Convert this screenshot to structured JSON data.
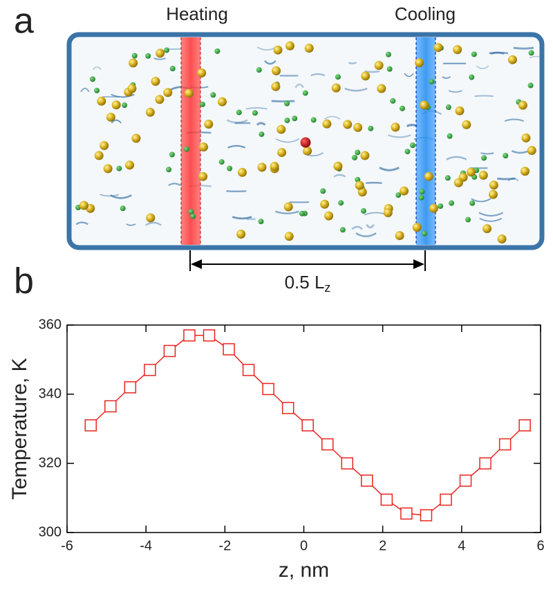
{
  "panel_a": {
    "label": "a",
    "heating": "Heating",
    "cooling": "Cooling",
    "length_label": "0.5 L",
    "length_subscript": "z"
  },
  "panel_b": {
    "label": "b"
  },
  "chart_data": {
    "type": "line",
    "xlabel": "z, nm",
    "ylabel": "Temperature, K",
    "x": [
      -5.4,
      -4.9,
      -4.4,
      -3.9,
      -3.4,
      -2.9,
      -2.4,
      -1.9,
      -1.4,
      -0.9,
      -0.4,
      0.1,
      0.6,
      1.1,
      1.6,
      2.1,
      2.6,
      3.1,
      3.6,
      4.1,
      4.6,
      5.1,
      5.6
    ],
    "values": [
      331,
      336.5,
      342,
      347,
      352.5,
      357,
      357,
      353,
      347,
      341.5,
      336,
      331,
      325.5,
      320,
      315,
      309.5,
      305.5,
      305,
      309.5,
      315,
      320,
      325.5,
      331
    ],
    "color": "#e8231e",
    "marker": "square",
    "xlim": [
      -6,
      6
    ],
    "xticks": [
      -6,
      -4,
      -2,
      0,
      2,
      4,
      6
    ],
    "ylim": [
      300,
      360
    ],
    "yticks": [
      300,
      320,
      340,
      360
    ]
  }
}
